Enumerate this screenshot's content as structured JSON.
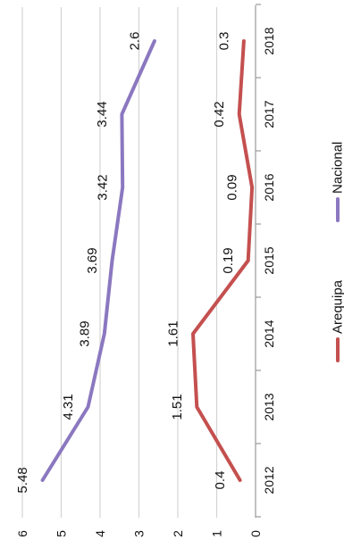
{
  "chart_data": {
    "type": "line",
    "orientation": "rotated-90-clockwise",
    "categories": [
      "2012",
      "2013",
      "2014",
      "2015",
      "2016",
      "2017",
      "2018"
    ],
    "series": [
      {
        "name": "Nacional",
        "color": "#8b78c0",
        "values": [
          5.48,
          4.31,
          3.89,
          3.69,
          3.42,
          3.44,
          2.6
        ],
        "labels": [
          "5.48",
          "4.31",
          "3.89",
          "3.69",
          "3.42",
          "3.44",
          "2.6"
        ]
      },
      {
        "name": "Arequipa",
        "color": "#c4504f",
        "values": [
          0.4,
          1.51,
          1.61,
          0.19,
          0.09,
          0.42,
          0.3
        ],
        "labels": [
          "0.4",
          "1.51",
          "1.61",
          "0.19",
          "0.09",
          "0.42",
          "0.3"
        ]
      }
    ],
    "yticks": [
      "0",
      "1",
      "2",
      "3",
      "4",
      "5",
      "6"
    ],
    "ylim": [
      0,
      6
    ],
    "grid": true,
    "legend_position": "right",
    "legend_order": [
      "Arequipa",
      "Nacional"
    ]
  }
}
